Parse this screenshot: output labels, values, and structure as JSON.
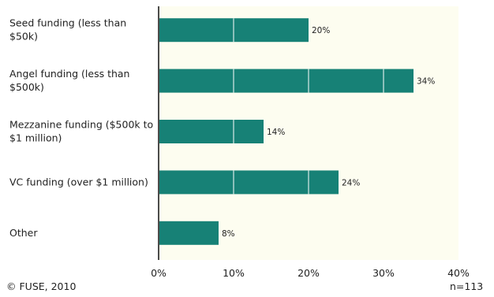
{
  "chart_data": {
    "type": "bar",
    "orientation": "horizontal",
    "categories": [
      [
        "Seed funding (less than",
        "$50k)"
      ],
      [
        "Angel funding (less than",
        "$500k)"
      ],
      [
        "Mezzanine funding ($500k to",
        "$1 million)"
      ],
      [
        "VC funding (over $1 million)"
      ],
      [
        "Other"
      ]
    ],
    "values": [
      20,
      34,
      14,
      24,
      8
    ],
    "data_labels": [
      "20%",
      "34%",
      "14%",
      "24%",
      "8%"
    ],
    "xlim": [
      0,
      40
    ],
    "x_ticks": [
      0,
      10,
      20,
      30,
      40
    ],
    "x_tick_labels": [
      "0%",
      "10%",
      "20%",
      "30%",
      "40%"
    ],
    "gridlines": "vertical",
    "colors": {
      "bar": "#178176",
      "plot_background": "#fdfdf0",
      "gridline": "#ffffff",
      "axis": "#111111"
    }
  },
  "footer": {
    "copyright": "© FUSE, 2010",
    "sample_size": "n=113"
  }
}
